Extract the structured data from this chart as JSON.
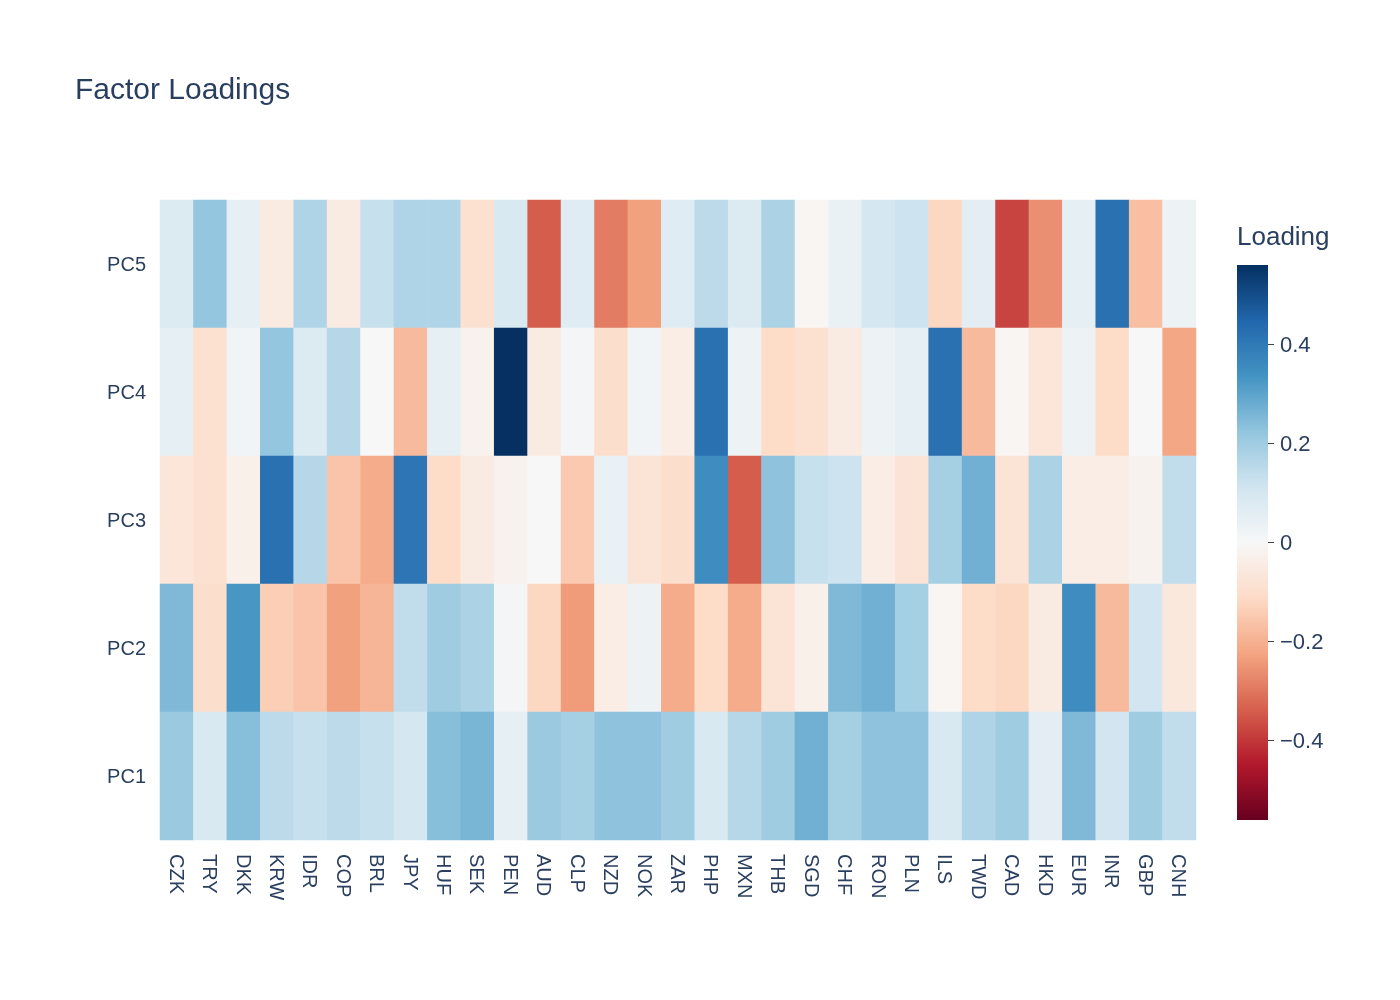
{
  "chart_data": {
    "type": "heatmap",
    "title": "Factor Loadings",
    "clabel": "Loading",
    "categories": [
      "CZK",
      "TRY",
      "DKK",
      "KRW",
      "IDR",
      "COP",
      "BRL",
      "JPY",
      "HUF",
      "SEK",
      "PEN",
      "AUD",
      "CLP",
      "NZD",
      "NOK",
      "ZAR",
      "PHP",
      "MXN",
      "THB",
      "SGD",
      "CHF",
      "RON",
      "PLN",
      "ILS",
      "TWD",
      "CAD",
      "HKD",
      "EUR",
      "INR",
      "GBP",
      "CNH"
    ],
    "y_categories": [
      "PC5",
      "PC4",
      "PC3",
      "PC2",
      "PC1"
    ],
    "cells": [
      [
        0.08,
        0.22,
        0.05,
        -0.05,
        0.17,
        -0.05,
        0.13,
        0.17,
        0.17,
        -0.09,
        0.09,
        -0.34,
        0.07,
        -0.29,
        -0.23,
        0.07,
        0.15,
        0.08,
        0.18,
        -0.01,
        0.04,
        0.1,
        0.12,
        -0.12,
        0.06,
        -0.38,
        -0.26,
        0.05,
        0.42,
        -0.17,
        0.03
      ],
      [
        0.05,
        -0.09,
        0.02,
        0.22,
        0.08,
        0.16,
        0.0,
        -0.18,
        0.05,
        -0.02,
        0.56,
        -0.05,
        0.01,
        -0.1,
        0.02,
        -0.04,
        0.42,
        0.03,
        -0.11,
        -0.09,
        -0.05,
        0.03,
        0.05,
        0.42,
        -0.18,
        -0.01,
        -0.07,
        0.03,
        -0.11,
        0.0,
        -0.22
      ],
      [
        -0.07,
        -0.09,
        -0.03,
        0.42,
        0.16,
        -0.16,
        -0.21,
        0.41,
        -0.11,
        -0.05,
        -0.02,
        0.0,
        -0.15,
        0.04,
        -0.08,
        -0.1,
        0.35,
        -0.34,
        0.23,
        0.13,
        0.12,
        -0.04,
        -0.08,
        0.19,
        0.27,
        -0.08,
        0.18,
        -0.04,
        -0.04,
        -0.02,
        0.14
      ],
      [
        0.25,
        -0.1,
        0.33,
        -0.14,
        -0.16,
        -0.23,
        -0.19,
        0.14,
        0.2,
        0.18,
        0.01,
        -0.12,
        -0.24,
        -0.04,
        0.03,
        -0.21,
        -0.11,
        -0.21,
        -0.08,
        -0.03,
        0.25,
        0.27,
        0.19,
        -0.01,
        -0.11,
        -0.12,
        -0.05,
        0.35,
        -0.18,
        0.11,
        -0.06
      ],
      [
        0.21,
        0.09,
        0.24,
        0.15,
        0.13,
        0.15,
        0.13,
        0.1,
        0.24,
        0.26,
        0.05,
        0.21,
        0.19,
        0.23,
        0.23,
        0.2,
        0.09,
        0.16,
        0.2,
        0.27,
        0.19,
        0.23,
        0.23,
        0.09,
        0.17,
        0.2,
        0.06,
        0.25,
        0.11,
        0.2,
        0.14
      ]
    ],
    "clim": [
      -0.56,
      0.56
    ],
    "cticks": [
      -0.4,
      -0.2,
      0,
      0.2,
      0.4
    ]
  }
}
